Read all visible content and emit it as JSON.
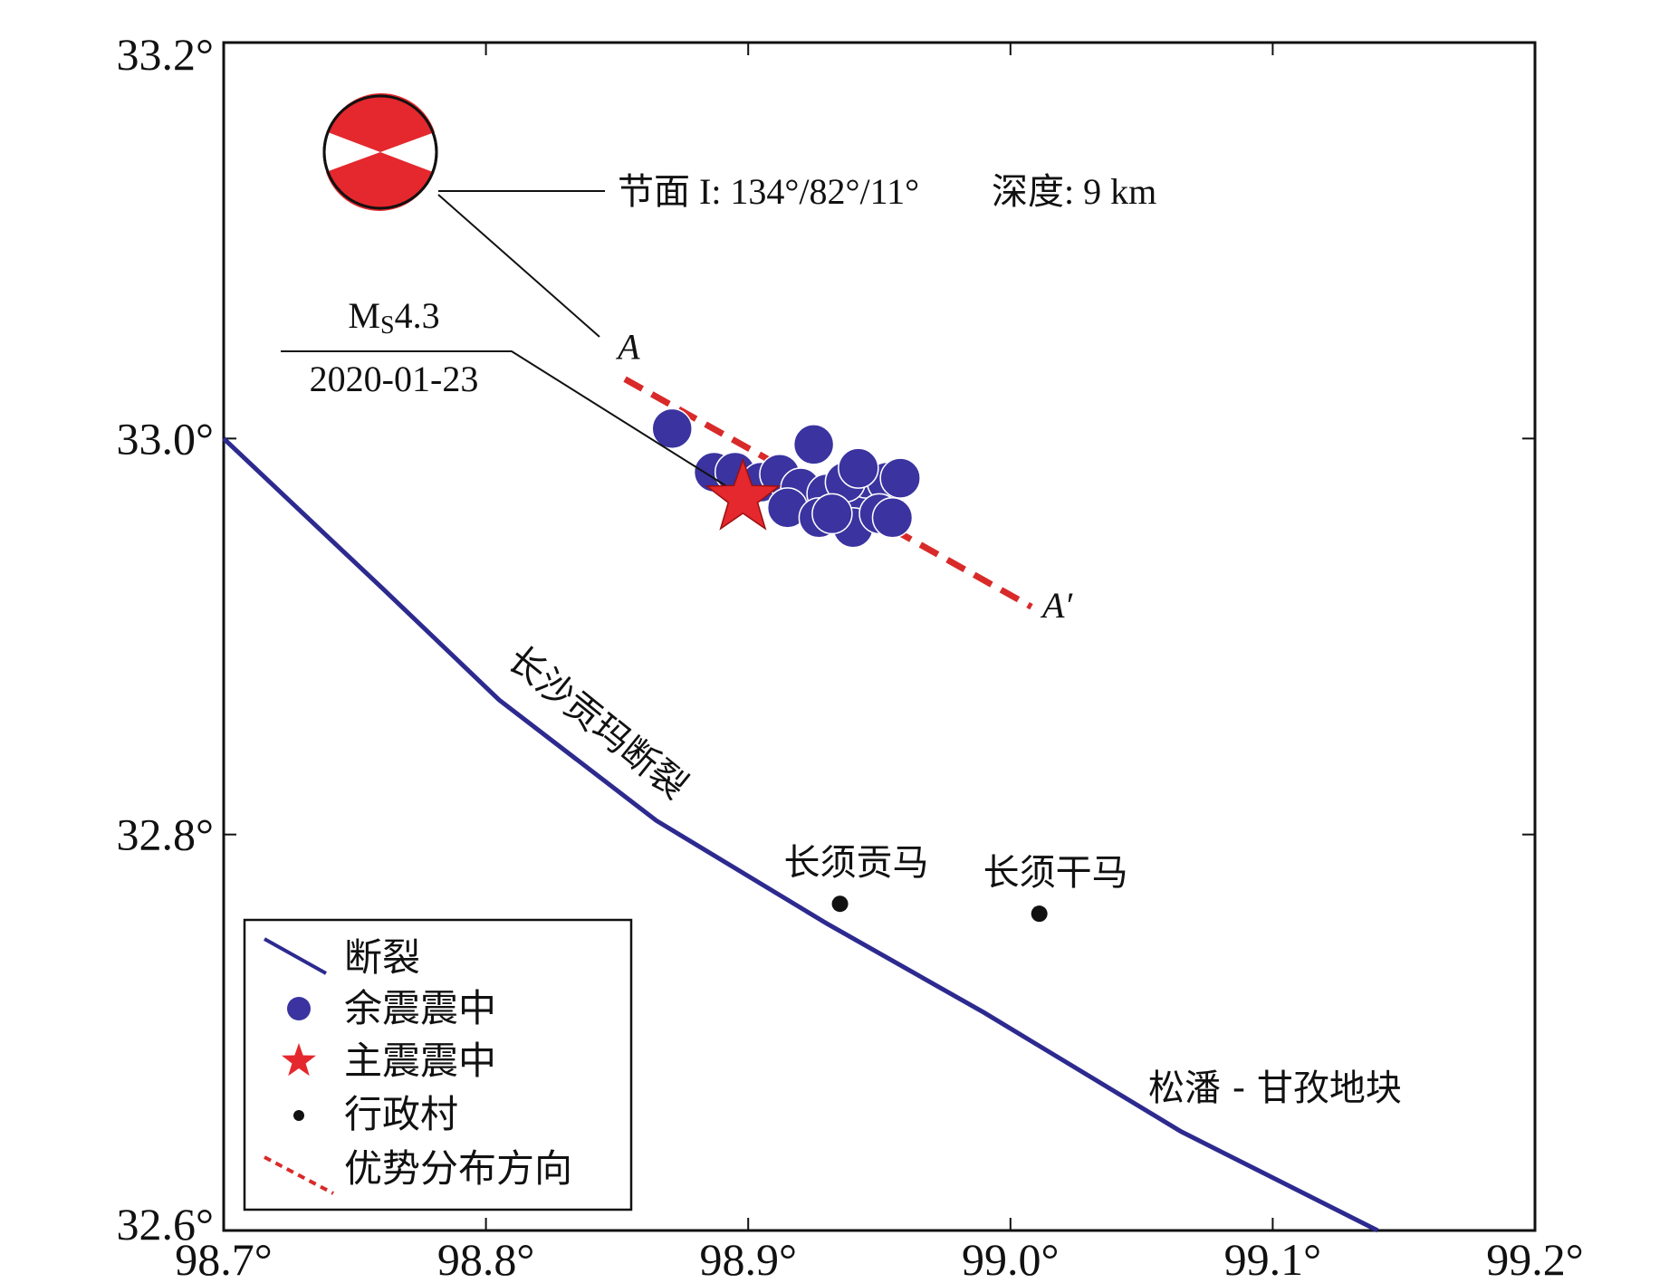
{
  "chart_data": {
    "type": "map",
    "x_axis": {
      "ticks": [
        "98.7°",
        "98.8°",
        "98.9°",
        "99.0°",
        "99.1°",
        "99.2°"
      ],
      "range": [
        98.7,
        99.2
      ]
    },
    "y_axis": {
      "ticks": [
        "33.2°",
        "33.0°",
        "32.8°",
        "32.6°"
      ],
      "range": [
        32.6,
        33.2
      ]
    },
    "focal_mechanism": {
      "nodal_plane_label": "节面 I: 134°/82°/11°",
      "depth_label": "深度: 9 km"
    },
    "mainshock": {
      "magnitude_prefix": "M",
      "magnitude_sub": "S",
      "magnitude_value": "4.3",
      "date": "2020-01-23",
      "lon": 98.898,
      "lat": 32.97
    },
    "profile": {
      "start_label": "A",
      "end_label": "A′",
      "start": [
        98.853,
        33.03
      ],
      "end": [
        99.008,
        32.915
      ]
    },
    "aftershocks": [
      [
        98.871,
        33.005
      ],
      [
        98.925,
        32.997
      ],
      [
        98.887,
        32.983
      ],
      [
        98.895,
        32.983
      ],
      [
        98.905,
        32.978
      ],
      [
        98.912,
        32.982
      ],
      [
        98.92,
        32.975
      ],
      [
        98.93,
        32.972
      ],
      [
        98.938,
        32.97
      ],
      [
        98.945,
        32.98
      ],
      [
        98.953,
        32.978
      ],
      [
        98.958,
        32.98
      ],
      [
        98.937,
        32.978
      ],
      [
        98.942,
        32.985
      ],
      [
        98.915,
        32.965
      ],
      [
        98.927,
        32.96
      ],
      [
        98.94,
        32.955
      ],
      [
        98.95,
        32.962
      ],
      [
        98.955,
        32.96
      ],
      [
        98.932,
        32.962
      ]
    ],
    "fault": {
      "name": "长沙贡玛断裂",
      "points": [
        [
          98.7,
          33.0
        ],
        [
          98.76,
          32.925
        ],
        [
          98.805,
          32.868
        ],
        [
          98.865,
          32.807
        ],
        [
          98.93,
          32.755
        ],
        [
          98.99,
          32.71
        ],
        [
          99.065,
          32.65
        ],
        [
          99.14,
          32.6
        ]
      ]
    },
    "villages": [
      {
        "name": "长须贡马",
        "lon": 98.935,
        "lat": 32.765
      },
      {
        "name": "长须干马",
        "lon": 99.011,
        "lat": 32.76
      }
    ],
    "block_label": "松潘 - 甘孜地块",
    "legend": [
      {
        "label": "断裂",
        "symbol": "line"
      },
      {
        "label": "余震震中",
        "symbol": "circle"
      },
      {
        "label": "主震震中",
        "symbol": "star"
      },
      {
        "label": "行政村",
        "symbol": "dot"
      },
      {
        "label": "优势分布方向",
        "symbol": "dashed"
      }
    ]
  },
  "colors": {
    "fault": "#2d2a8f",
    "aftershock": "#3a33a0",
    "mainshock": "#e4282d",
    "profile": "#d92a2a",
    "beachball": "#e4282d"
  }
}
